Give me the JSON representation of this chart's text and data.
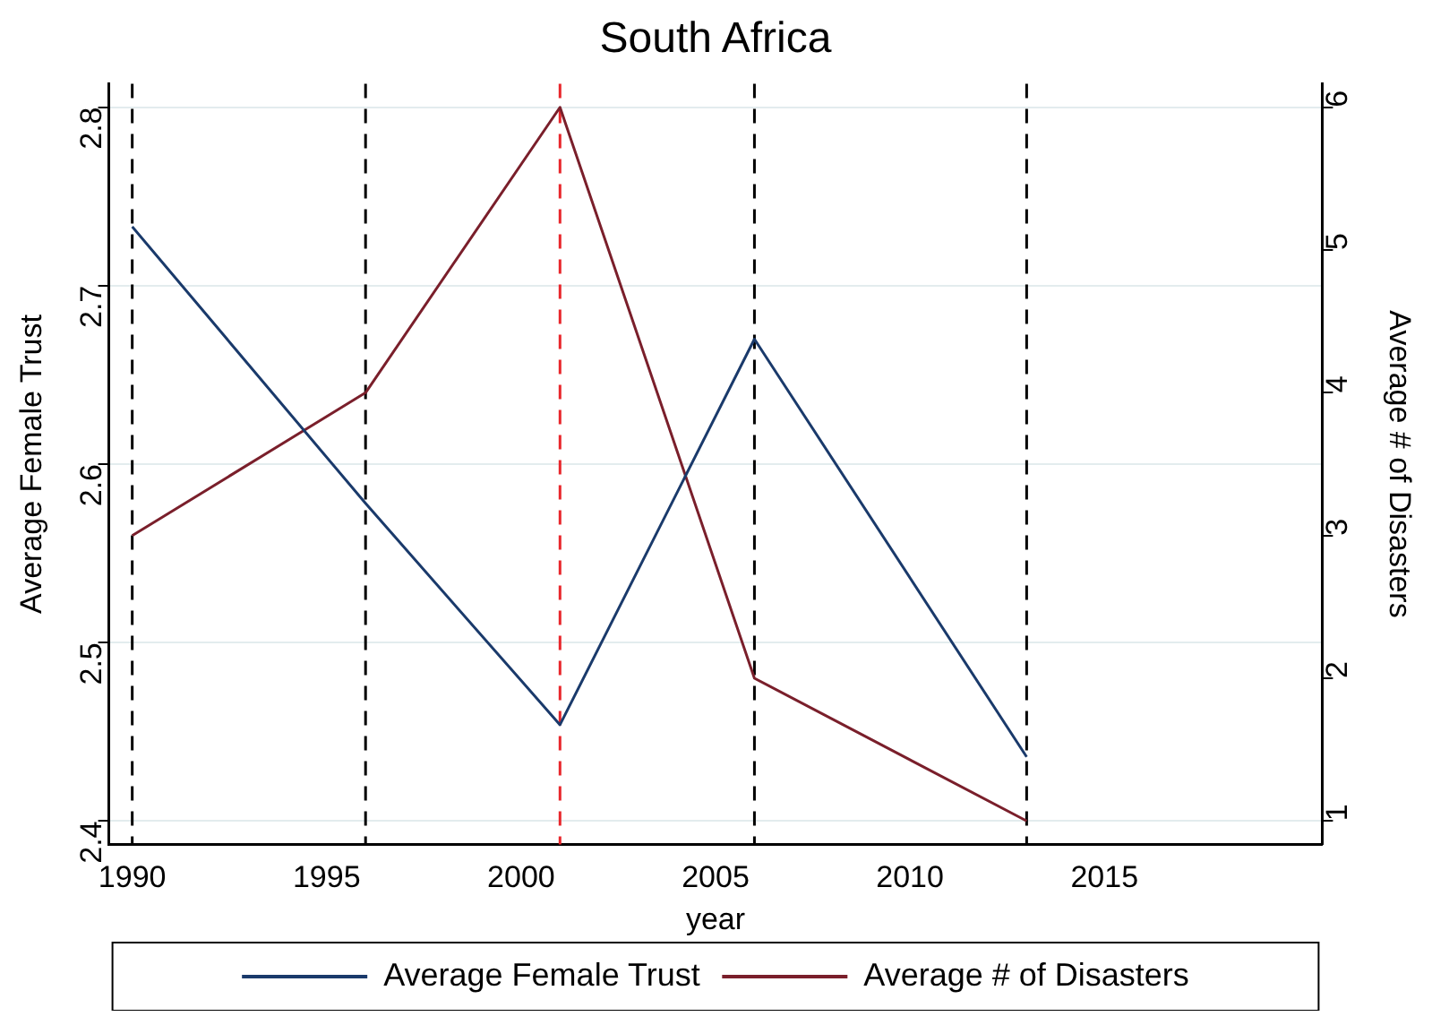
{
  "chart_data": {
    "type": "line",
    "title": "South Africa",
    "xlabel": "year",
    "ylabel": "Average Female Trust",
    "y2label": "Average # of Disasters",
    "x": [
      1990,
      1996,
      2001,
      2006,
      2013
    ],
    "series": [
      {
        "name": "Average Female Trust",
        "color": "#1a3a6b",
        "values": [
          2.733,
          2.578,
          2.454,
          2.67,
          2.436
        ]
      },
      {
        "name": "Average # of Disasters",
        "color": "#7a1f2b",
        "values": [
          3,
          4,
          6,
          2,
          1
        ],
        "axis": "y2"
      }
    ],
    "xlim": [
      1989.4,
      2020.6
    ],
    "xticks": [
      1990,
      1995,
      2000,
      2005,
      2010,
      2015
    ],
    "ylim": [
      2.387,
      2.813
    ],
    "yticks": [
      2.4,
      2.5,
      2.6,
      2.7,
      2.8
    ],
    "y2lim": [
      0.836,
      6.164
    ],
    "y2ticks": [
      1,
      2,
      3,
      4,
      5,
      6
    ],
    "ref_lines": [
      {
        "axis": "x",
        "value": 1990,
        "color": "#000000",
        "line_style": "dashed"
      },
      {
        "axis": "x",
        "value": 1996,
        "color": "#000000",
        "line_style": "dashed"
      },
      {
        "axis": "x",
        "value": 2001,
        "color": "#e8272c",
        "line_style": "dashed"
      },
      {
        "axis": "x",
        "value": 2006,
        "color": "#000000",
        "line_style": "dashed"
      },
      {
        "axis": "x",
        "value": 2013,
        "color": "#000000",
        "line_style": "dashed"
      }
    ],
    "grid": "y",
    "legend": "bottom",
    "marker": "none",
    "line_style": "solid"
  }
}
